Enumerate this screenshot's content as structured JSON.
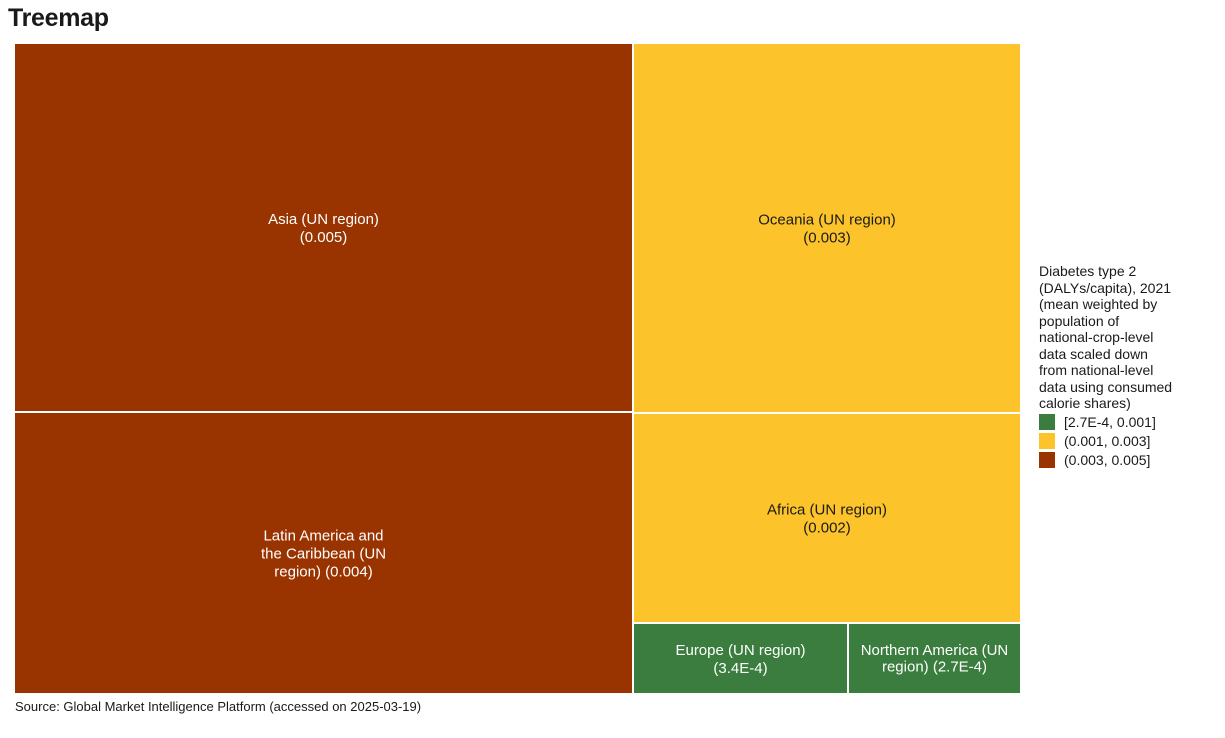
{
  "title": "Treemap",
  "source": "Source: Global Market Intelligence Platform (accessed on 2025-03-19)",
  "chart_data": {
    "type": "treemap",
    "metric": "Diabetes type 2 (DALYs/capita), 2021 (mean weighted by population of national-crop-level data scaled down from national-level data using consumed calorie shares)",
    "items": [
      {
        "name": "Asia (UN region)",
        "value": 0.005,
        "value_label": "0.005",
        "bin": 2
      },
      {
        "name": "Latin America and the Caribbean (UN region)",
        "value": 0.004,
        "value_label": "0.004",
        "bin": 2
      },
      {
        "name": "Oceania (UN region)",
        "value": 0.003,
        "value_label": "0.003",
        "bin": 1
      },
      {
        "name": "Africa (UN region)",
        "value": 0.002,
        "value_label": "0.002",
        "bin": 1
      },
      {
        "name": "Europe (UN region)",
        "value": 0.00034,
        "value_label": "3.4E-4",
        "bin": 0
      },
      {
        "name": "Northern America (UN region)",
        "value": 0.00027,
        "value_label": "2.7E-4",
        "bin": 0
      }
    ],
    "legend": {
      "title": "Diabetes type 2\n(DALYs/capita), 2021\n(mean weighted by\npopulation of\nnational-crop-level\ndata scaled down\nfrom national-level\ndata using consumed\ncalorie shares)",
      "bins": [
        {
          "label": "[2.7E-4, 0.001]",
          "color": "#3a7d3e"
        },
        {
          "label": "(0.001, 0.003]",
          "color": "#fcc42a"
        },
        {
          "label": "(0.003, 0.005]",
          "color": "#993300"
        }
      ],
      "placement": "right"
    }
  }
}
